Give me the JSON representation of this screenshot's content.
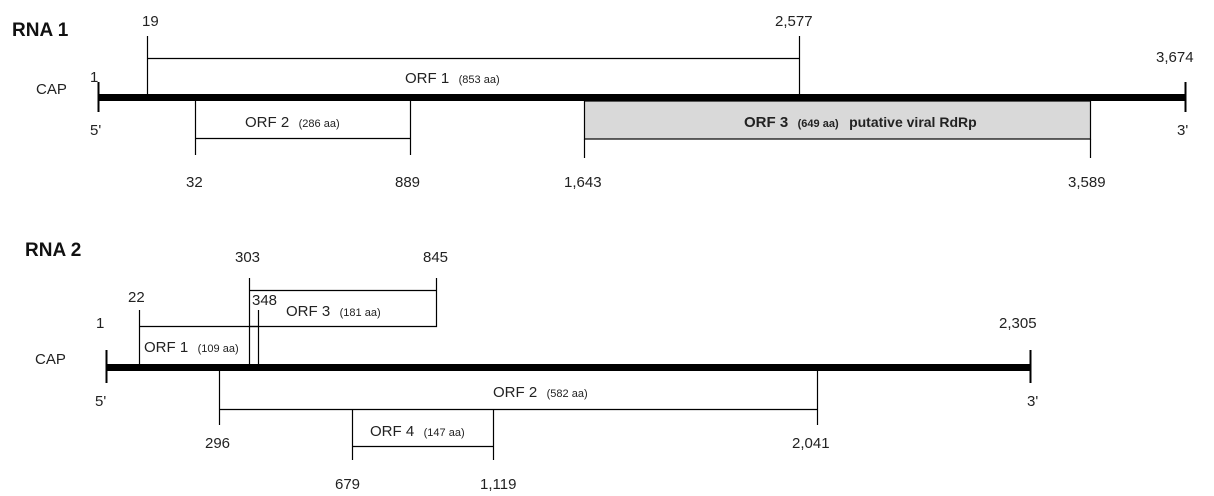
{
  "colors": {
    "genome": "#000000",
    "rdrp_fill": "#d9d9d9"
  },
  "rna1": {
    "title": "RNA 1",
    "cap": "CAP",
    "five_prime": "5'",
    "three_prime": "3'",
    "start_label": "1",
    "end_label": "3,674",
    "orfs": [
      {
        "name": "ORF 1",
        "aa": "(853 aa)",
        "extra": "",
        "start_label": "19",
        "end_label": "2,577"
      },
      {
        "name": "ORF 2",
        "aa": "(286 aa)",
        "extra": "",
        "start_label": "32",
        "end_label": "889"
      },
      {
        "name": "ORF 3",
        "aa": "(649 aa)",
        "extra": "putative viral RdRp",
        "start_label": "1,643",
        "end_label": "3,589"
      }
    ]
  },
  "rna2": {
    "title": "RNA 2",
    "cap": "CAP",
    "five_prime": "5'",
    "three_prime": "3'",
    "start_label": "1",
    "end_label": "2,305",
    "orfs": [
      {
        "name": "ORF 1",
        "aa": "(109 aa)",
        "start_label": "22",
        "end_label": "348"
      },
      {
        "name": "ORF 3",
        "aa": "(181 aa)",
        "start_label": "303",
        "end_label": "845"
      },
      {
        "name": "ORF 2",
        "aa": "(582 aa)",
        "start_label": "296",
        "end_label": "2,041"
      },
      {
        "name": "ORF 4",
        "aa": "(147 aa)",
        "start_label": "679",
        "end_label": "1,119"
      }
    ]
  }
}
